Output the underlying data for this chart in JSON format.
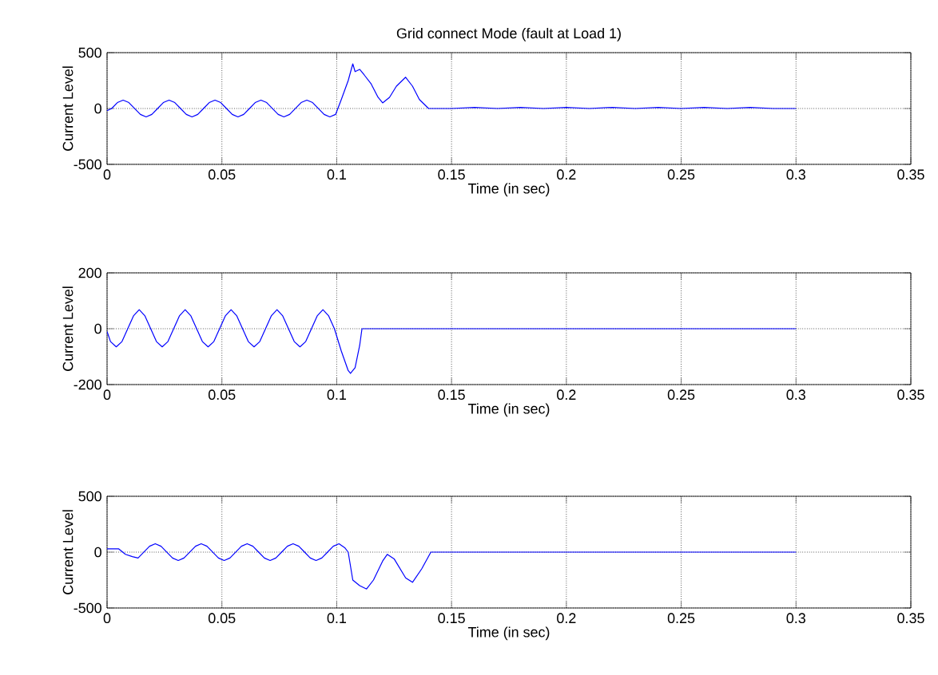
{
  "chart_data": [
    {
      "type": "line",
      "title": "Grid connect Mode (fault at Load 1)",
      "xlabel": "Time (in sec)",
      "ylabel": "Current Level",
      "xlim": [
        0,
        0.35
      ],
      "ylim": [
        -500,
        500
      ],
      "xticks": [
        0,
        0.05,
        0.1,
        0.15,
        0.2,
        0.25,
        0.3,
        0.35
      ],
      "yticks": [
        -500,
        0,
        500
      ],
      "grid": true,
      "series": [
        {
          "color": "#0000ff",
          "x": [
            0,
            0.002,
            0.0045,
            0.007,
            0.0095,
            0.012,
            0.0145,
            0.017,
            0.0195,
            0.022,
            0.0245,
            0.027,
            0.0295,
            0.032,
            0.0345,
            0.037,
            0.0395,
            0.042,
            0.0445,
            0.047,
            0.0495,
            0.052,
            0.0545,
            0.057,
            0.0595,
            0.062,
            0.0645,
            0.067,
            0.0695,
            0.072,
            0.0745,
            0.077,
            0.0795,
            0.082,
            0.0845,
            0.087,
            0.0895,
            0.092,
            0.0945,
            0.097,
            0.0995,
            0.102,
            0.105,
            0.107,
            0.108,
            0.11,
            0.112,
            0.115,
            0.118,
            0.12,
            0.123,
            0.126,
            0.13,
            0.133,
            0.136,
            0.14,
            0.15,
            0.16,
            0.17,
            0.18,
            0.19,
            0.2,
            0.21,
            0.22,
            0.23,
            0.24,
            0.25,
            0.26,
            0.27,
            0.28,
            0.29,
            0.3
          ],
          "values": [
            -20,
            0,
            53,
            75,
            53,
            0,
            -53,
            -75,
            -53,
            0,
            53,
            75,
            53,
            0,
            -53,
            -75,
            -53,
            0,
            53,
            75,
            53,
            0,
            -53,
            -75,
            -53,
            0,
            53,
            75,
            53,
            0,
            -53,
            -75,
            -53,
            0,
            53,
            75,
            53,
            0,
            -53,
            -75,
            -53,
            80,
            250,
            400,
            330,
            350,
            300,
            220,
            100,
            50,
            100,
            200,
            280,
            200,
            80,
            0,
            0,
            10,
            0,
            10,
            0,
            10,
            0,
            10,
            0,
            10,
            0,
            10,
            0,
            10,
            0,
            0
          ]
        }
      ]
    },
    {
      "type": "line",
      "xlabel": "Time (in sec)",
      "ylabel": "Current Level",
      "xlim": [
        0,
        0.35
      ],
      "ylim": [
        -200,
        200
      ],
      "xticks": [
        0,
        0.05,
        0.1,
        0.15,
        0.2,
        0.25,
        0.3,
        0.35
      ],
      "yticks": [
        -200,
        0,
        200
      ],
      "grid": true,
      "series": [
        {
          "color": "#0000ff",
          "x": [
            0,
            0.0015,
            0.004,
            0.0065,
            0.009,
            0.0115,
            0.014,
            0.0165,
            0.019,
            0.0215,
            0.024,
            0.0265,
            0.029,
            0.0315,
            0.034,
            0.0365,
            0.039,
            0.0415,
            0.044,
            0.0465,
            0.049,
            0.0515,
            0.054,
            0.0565,
            0.059,
            0.0615,
            0.064,
            0.0665,
            0.069,
            0.0715,
            0.074,
            0.0765,
            0.079,
            0.0815,
            0.084,
            0.0865,
            0.089,
            0.0915,
            0.094,
            0.0965,
            0.099,
            0.102,
            0.105,
            0.106,
            0.108,
            0.11,
            0.111,
            0.12,
            0.15,
            0.2,
            0.25,
            0.3
          ],
          "values": [
            -10,
            -46,
            -65,
            -46,
            0,
            46,
            68,
            46,
            0,
            -46,
            -65,
            -46,
            0,
            46,
            68,
            46,
            0,
            -46,
            -65,
            -46,
            0,
            46,
            68,
            46,
            0,
            -46,
            -65,
            -46,
            0,
            46,
            68,
            46,
            0,
            -46,
            -65,
            -46,
            0,
            46,
            68,
            46,
            0,
            -80,
            -150,
            -160,
            -140,
            -60,
            0,
            0,
            0,
            0,
            0,
            0
          ]
        }
      ]
    },
    {
      "type": "line",
      "xlabel": "Time (in sec)",
      "ylabel": "Current Level",
      "xlim": [
        0,
        0.35
      ],
      "ylim": [
        -500,
        500
      ],
      "xticks": [
        0,
        0.05,
        0.1,
        0.15,
        0.2,
        0.25,
        0.3,
        0.35
      ],
      "yticks": [
        -500,
        0,
        500
      ],
      "grid": true,
      "series": [
        {
          "color": "#0000ff",
          "x": [
            0,
            0.005,
            0.008,
            0.011,
            0.0135,
            0.016,
            0.0185,
            0.021,
            0.0235,
            0.026,
            0.0285,
            0.031,
            0.0335,
            0.036,
            0.0385,
            0.041,
            0.0435,
            0.046,
            0.0485,
            0.051,
            0.0535,
            0.056,
            0.0585,
            0.061,
            0.0635,
            0.066,
            0.0685,
            0.071,
            0.0735,
            0.076,
            0.0785,
            0.081,
            0.0835,
            0.086,
            0.0885,
            0.091,
            0.0935,
            0.096,
            0.0985,
            0.101,
            0.1035,
            0.105,
            0.107,
            0.11,
            0.113,
            0.116,
            0.12,
            0.122,
            0.125,
            0.13,
            0.133,
            0.137,
            0.141,
            0.15,
            0.2,
            0.25,
            0.3
          ],
          "values": [
            30,
            30,
            -20,
            -40,
            -53,
            0,
            53,
            75,
            53,
            0,
            -53,
            -75,
            -53,
            0,
            53,
            75,
            53,
            0,
            -53,
            -75,
            -53,
            0,
            53,
            75,
            53,
            0,
            -53,
            -75,
            -53,
            0,
            53,
            75,
            53,
            0,
            -53,
            -75,
            -53,
            0,
            53,
            75,
            40,
            0,
            -250,
            -300,
            -330,
            -250,
            -80,
            -20,
            -60,
            -230,
            -270,
            -150,
            0,
            0,
            0,
            0,
            0
          ]
        }
      ]
    }
  ]
}
